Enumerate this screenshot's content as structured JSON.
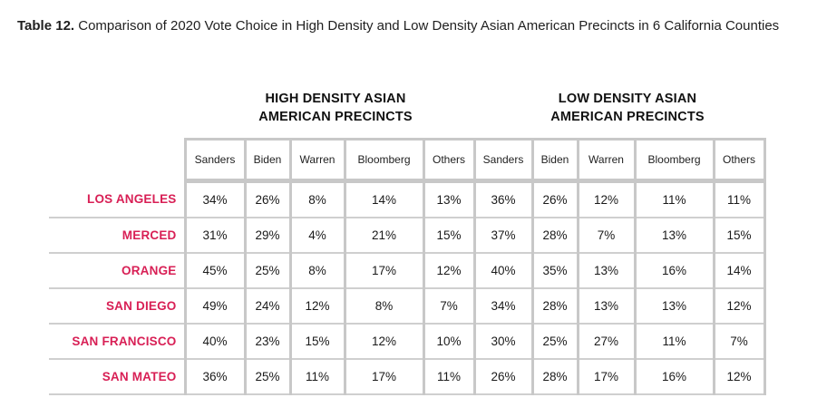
{
  "caption": {
    "label": "Table 12.",
    "text": " Comparison of 2020 Vote Choice in High Density and Low Density Asian American Precincts in 6 California Counties"
  },
  "groups": {
    "high": {
      "line1": "HIGH DENSITY ASIAN",
      "line2": "AMERICAN PRECINCTS"
    },
    "low": {
      "line1": "LOW DENSITY ASIAN",
      "line2": "AMERICAN PRECINCTS"
    }
  },
  "columns": [
    "Sanders",
    "Biden",
    "Warren",
    "Bloomberg",
    "Others",
    "Sanders",
    "Biden",
    "Warren",
    "Bloomberg",
    "Others"
  ],
  "rows": [
    {
      "county": "LOS ANGELES",
      "values": [
        "34%",
        "26%",
        "8%",
        "14%",
        "13%",
        "36%",
        "26%",
        "12%",
        "11%",
        "11%"
      ]
    },
    {
      "county": "MERCED",
      "values": [
        "31%",
        "29%",
        "4%",
        "21%",
        "15%",
        "37%",
        "28%",
        "7%",
        "13%",
        "15%"
      ]
    },
    {
      "county": "ORANGE",
      "values": [
        "45%",
        "25%",
        "8%",
        "17%",
        "12%",
        "40%",
        "35%",
        "13%",
        "16%",
        "14%"
      ]
    },
    {
      "county": "SAN DIEGO",
      "values": [
        "49%",
        "24%",
        "12%",
        "8%",
        "7%",
        "34%",
        "28%",
        "13%",
        "13%",
        "12%"
      ]
    },
    {
      "county": "SAN FRANCISCO",
      "values": [
        "40%",
        "23%",
        "15%",
        "12%",
        "10%",
        "30%",
        "25%",
        "27%",
        "11%",
        "7%"
      ]
    },
    {
      "county": "SAN MATEO",
      "values": [
        "36%",
        "25%",
        "11%",
        "17%",
        "11%",
        "26%",
        "28%",
        "17%",
        "16%",
        "12%"
      ]
    }
  ],
  "colors": {
    "county_label": "#d81f55",
    "grid": "#c8c8c8"
  }
}
